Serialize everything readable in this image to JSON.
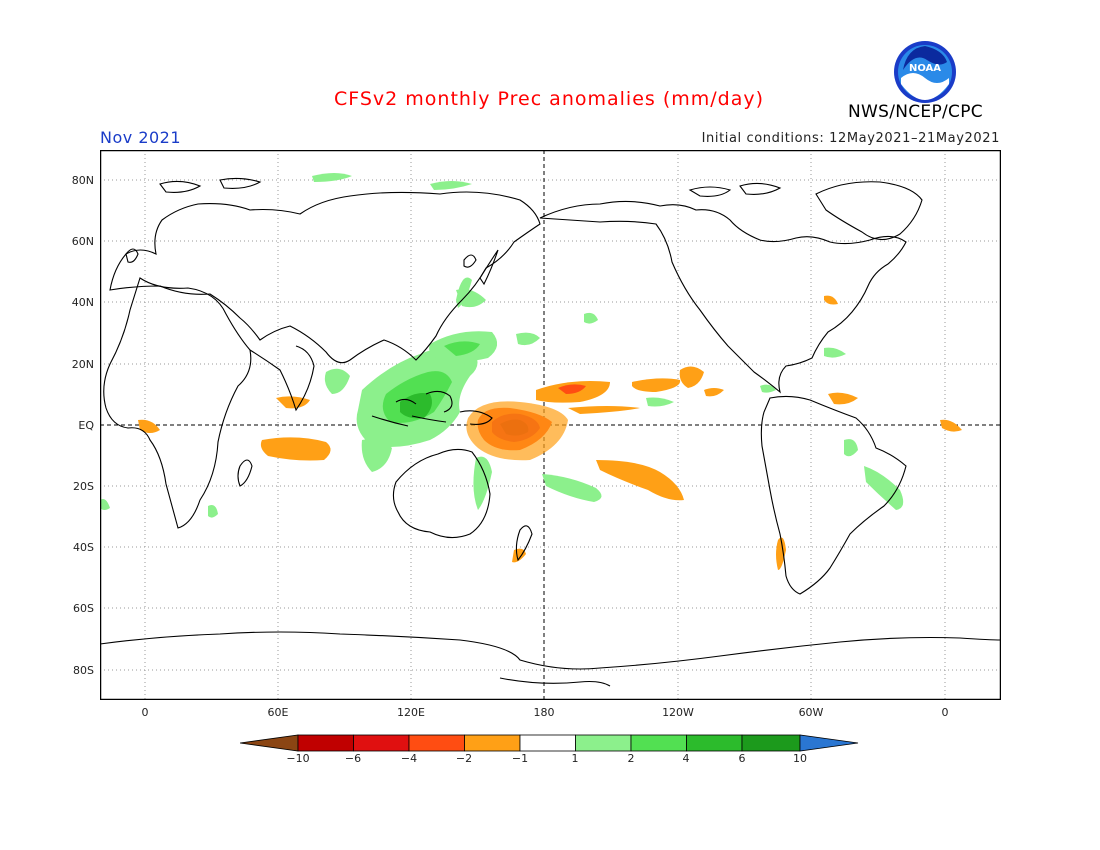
{
  "header": {
    "title": "CFSv2 monthly Prec anomalies (mm/day)",
    "month": "Nov 2021",
    "initial_conditions": "Initial conditions: 12May2021–21May2021",
    "agency": "NWS/NCEP/CPC",
    "logo_text": "NOAA"
  },
  "colors": {
    "title": "#ff0000",
    "month": "#1a3cc8",
    "dry_10": "#8b4513",
    "dry_6": "#c00000",
    "dry_4": "#e01010",
    "dry_2": "#ff4d12",
    "dry_1": "#ffa016",
    "neutral": "#ffffff",
    "wet_1": "#8cf08c",
    "wet_2": "#52e052",
    "wet_4": "#2cbb2c",
    "wet_6": "#1c9a1c",
    "wet_10": "#2a76d2"
  },
  "axes": {
    "lat_labels": [
      "80N",
      "60N",
      "40N",
      "20N",
      "EQ",
      "20S",
      "40S",
      "60S",
      "80S"
    ],
    "lon_labels": [
      "0",
      "60E",
      "120E",
      "180",
      "120W",
      "60W",
      "0"
    ]
  },
  "colorbar": {
    "labels": [
      "−10",
      "−6",
      "−4",
      "−2",
      "−1",
      "1",
      "2",
      "4",
      "6",
      "10"
    ],
    "bins": [
      "#8b4513",
      "#c00000",
      "#e01010",
      "#ff4d12",
      "#ffa016",
      "#ffffff",
      "#8cf08c",
      "#52e052",
      "#2cbb2c",
      "#1c9a1c",
      "#2a76d2"
    ]
  }
}
